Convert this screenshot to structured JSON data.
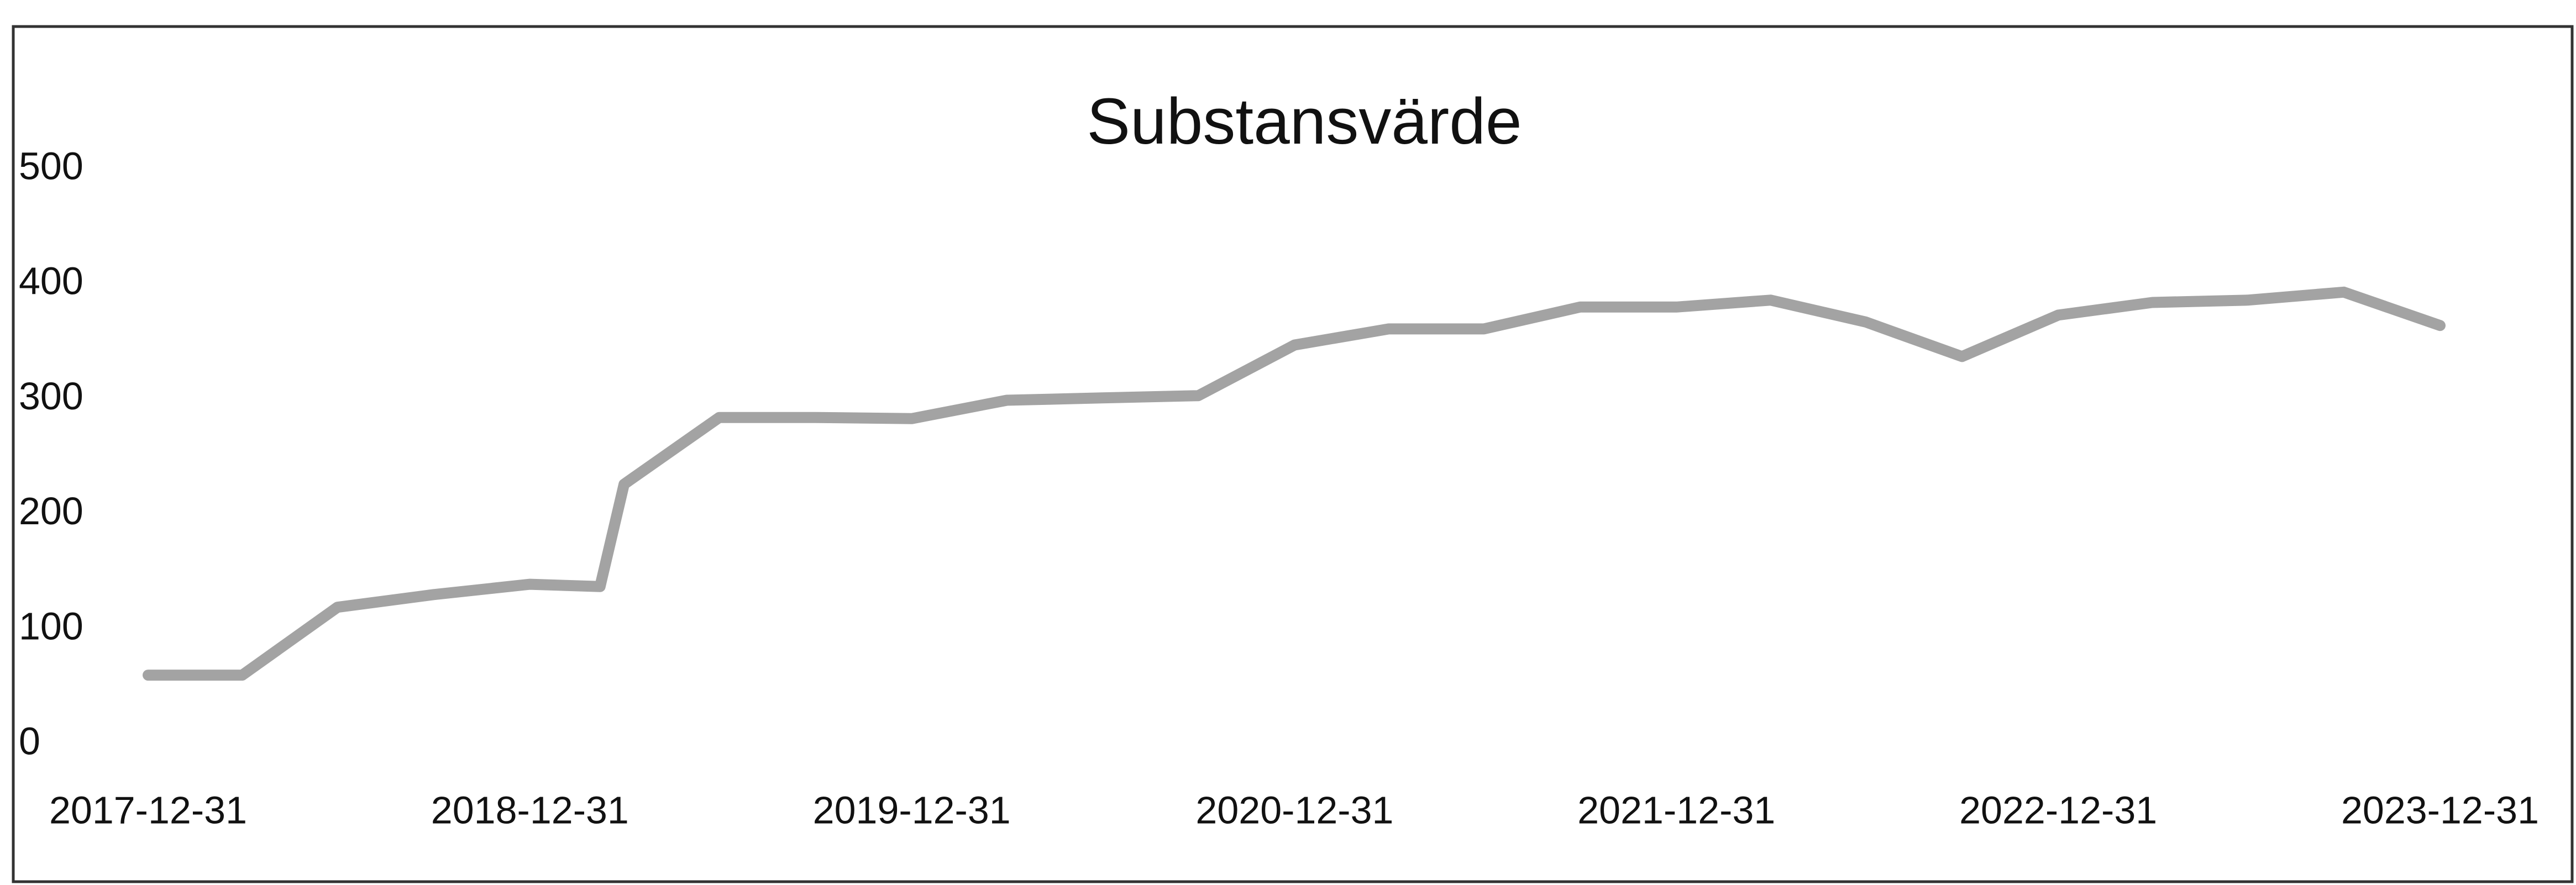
{
  "chart_data": {
    "type": "line",
    "title": "Substansvärde",
    "x": [
      "2017-12-31",
      "2018-03-31",
      "2018-06-30",
      "2018-09-30",
      "2018-12-31",
      "2019-03-08",
      "2019-03-31",
      "2019-06-30",
      "2019-09-30",
      "2019-12-31",
      "2020-03-31",
      "2020-06-30",
      "2020-09-30",
      "2020-12-31",
      "2021-03-31",
      "2021-06-30",
      "2021-09-30",
      "2021-12-31",
      "2022-03-31",
      "2022-06-30",
      "2022-09-30",
      "2022-12-31",
      "2023-03-31",
      "2023-06-30",
      "2023-09-30",
      "2023-12-31"
    ],
    "series": [
      {
        "color": "#a3a3a3",
        "values": [
          60,
          60,
          119,
          130,
          139,
          137,
          226,
          284,
          284,
          283,
          299,
          301,
          303,
          347,
          361,
          361,
          380,
          380,
          386,
          367,
          337,
          373,
          384,
          386,
          393,
          364
        ]
      }
    ],
    "xlim": [
      "2017-12-31",
      "2023-12-31"
    ],
    "xticks": [
      "2017-12-31",
      "2018-12-31",
      "2019-12-31",
      "2020-12-31",
      "2021-12-31",
      "2022-12-31",
      "2023-12-31"
    ],
    "ylim": [
      0,
      500
    ],
    "yticks": [
      0,
      100,
      200,
      300,
      400,
      500
    ],
    "grid": false
  }
}
